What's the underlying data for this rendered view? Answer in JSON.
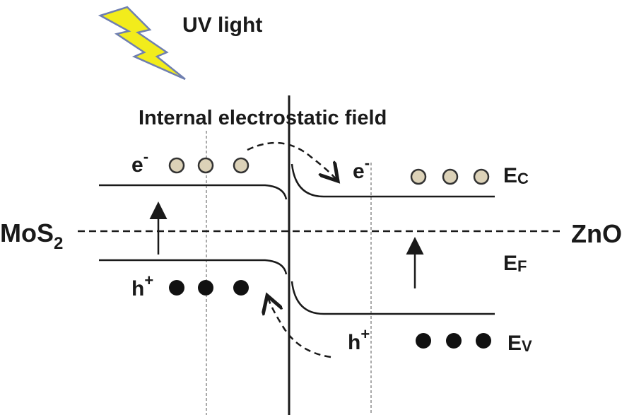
{
  "uv_label": "UV light",
  "field_label": "Internal electrostatic field",
  "left_material": {
    "base": "MoS",
    "subscript": "2"
  },
  "right_material": "ZnO",
  "electron_label_left": {
    "base": "e",
    "sup": "-"
  },
  "electron_label_right": {
    "base": "e",
    "sup": "-"
  },
  "hole_label_left": {
    "base": "h",
    "sup": "+"
  },
  "hole_label_right": {
    "base": "h",
    "sup": "+"
  },
  "conduction_band": {
    "base": "E",
    "sub": "C"
  },
  "fermi_level": {
    "base": "E",
    "sub": "F"
  },
  "valence_band": {
    "base": "E",
    "sub": "V"
  },
  "colors": {
    "lightning_fill": "#f2ec1c",
    "lightning_stroke": "#6f7fb0",
    "electron_fill": "#dcd2b8",
    "electron_stroke": "#333333",
    "hole_fill": "#111111",
    "line": "#1a1a1a"
  }
}
